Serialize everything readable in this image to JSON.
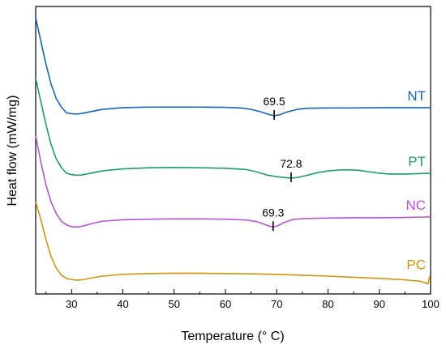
{
  "chart_data": {
    "type": "line",
    "xlabel": "Temperature (° C)",
    "ylabel": "Heat flow (mW/mg)",
    "xlim": [
      23,
      100
    ],
    "xticks": [
      30,
      40,
      50,
      60,
      70,
      80,
      90,
      100
    ],
    "xtick_labels": [
      "30",
      "40",
      "50",
      "60",
      "70",
      "80",
      "90",
      "100"
    ],
    "ylim": [
      0,
      100
    ],
    "yticks_shown": false,
    "grid": false,
    "series": [
      {
        "name": "NT",
        "color": "#1565C0",
        "points": [
          [
            23,
            96
          ],
          [
            24,
            88
          ],
          [
            25,
            80
          ],
          [
            26,
            73
          ],
          [
            27,
            68
          ],
          [
            28,
            65
          ],
          [
            29,
            63
          ],
          [
            30,
            62.7
          ],
          [
            31,
            62.6
          ],
          [
            32,
            62.8
          ],
          [
            34,
            63.5
          ],
          [
            36,
            64.2
          ],
          [
            40,
            64.8
          ],
          [
            45,
            65.0
          ],
          [
            50,
            65.0
          ],
          [
            55,
            65.0
          ],
          [
            60,
            64.9
          ],
          [
            63,
            64.7
          ],
          [
            65,
            64.2
          ],
          [
            67,
            63.3
          ],
          [
            68.5,
            62.4
          ],
          [
            69.5,
            62.0
          ],
          [
            70.5,
            62.3
          ],
          [
            72,
            63.3
          ],
          [
            74,
            64.2
          ],
          [
            76,
            64.6
          ],
          [
            80,
            64.7
          ],
          [
            85,
            64.7
          ],
          [
            90,
            64.8
          ],
          [
            95,
            64.8
          ],
          [
            100,
            64.8
          ]
        ],
        "peak_x": 69.5,
        "peak_label": "69.5"
      },
      {
        "name": "PT",
        "color": "#1C9E6B",
        "points": [
          [
            23,
            75
          ],
          [
            24,
            67
          ],
          [
            25,
            59
          ],
          [
            26,
            52
          ],
          [
            27,
            47
          ],
          [
            28,
            44
          ],
          [
            29,
            42
          ],
          [
            30,
            41.5
          ],
          [
            31,
            41.3
          ],
          [
            32,
            41.4
          ],
          [
            34,
            42.1
          ],
          [
            36,
            42.8
          ],
          [
            40,
            43.5
          ],
          [
            45,
            43.9
          ],
          [
            50,
            44.0
          ],
          [
            55,
            43.9
          ],
          [
            60,
            43.7
          ],
          [
            64,
            43.3
          ],
          [
            66,
            42.5
          ],
          [
            68,
            41.4
          ],
          [
            70,
            40.8
          ],
          [
            72,
            40.4
          ],
          [
            72.8,
            40.3
          ],
          [
            74,
            40.5
          ],
          [
            76,
            41.3
          ],
          [
            78,
            42.2
          ],
          [
            80,
            42.8
          ],
          [
            82,
            43.1
          ],
          [
            84,
            43.2
          ],
          [
            86,
            43.0
          ],
          [
            88,
            42.5
          ],
          [
            90,
            42.0
          ],
          [
            92,
            41.7
          ],
          [
            95,
            41.7
          ],
          [
            97,
            41.8
          ],
          [
            100,
            42.0
          ]
        ],
        "peak_x": 72.8,
        "peak_label": "72.8"
      },
      {
        "name": "NC",
        "color": "#B455D9",
        "points": [
          [
            23,
            55
          ],
          [
            24,
            46
          ],
          [
            25,
            38
          ],
          [
            26,
            32
          ],
          [
            27,
            28
          ],
          [
            28,
            25.3
          ],
          [
            29,
            24
          ],
          [
            30,
            23.4
          ],
          [
            31,
            23.3
          ],
          [
            32,
            23.5
          ],
          [
            34,
            24.5
          ],
          [
            36,
            25.3
          ],
          [
            40,
            25.8
          ],
          [
            45,
            26.0
          ],
          [
            50,
            26.1
          ],
          [
            55,
            26.1
          ],
          [
            60,
            26.0
          ],
          [
            64,
            25.7
          ],
          [
            66,
            25.2
          ],
          [
            67.5,
            24.3
          ],
          [
            68.5,
            23.6
          ],
          [
            69.3,
            23.3
          ],
          [
            70.2,
            23.7
          ],
          [
            71.5,
            24.9
          ],
          [
            73,
            25.8
          ],
          [
            75,
            26.2
          ],
          [
            80,
            26.4
          ],
          [
            85,
            26.5
          ],
          [
            90,
            26.5
          ],
          [
            95,
            26.6
          ],
          [
            100,
            26.8
          ]
        ],
        "peak_x": 69.3,
        "peak_label": "69.3"
      },
      {
        "name": "PC",
        "color": "#D4930E",
        "points": [
          [
            23,
            32
          ],
          [
            24,
            26
          ],
          [
            25,
            19
          ],
          [
            26,
            13
          ],
          [
            27,
            9
          ],
          [
            28,
            6.6
          ],
          [
            29,
            5.4
          ],
          [
            30,
            5.0
          ],
          [
            31,
            4.8
          ],
          [
            32,
            4.9
          ],
          [
            34,
            5.6
          ],
          [
            36,
            6.2
          ],
          [
            40,
            6.8
          ],
          [
            45,
            7.1
          ],
          [
            50,
            7.2
          ],
          [
            55,
            7.2
          ],
          [
            60,
            7.1
          ],
          [
            65,
            7.0
          ],
          [
            70,
            6.8
          ],
          [
            75,
            6.5
          ],
          [
            80,
            6.2
          ],
          [
            85,
            5.8
          ],
          [
            90,
            5.4
          ],
          [
            95,
            4.9
          ],
          [
            98,
            4.4
          ],
          [
            99.5,
            3.5
          ],
          [
            99.8,
            6
          ]
        ]
      }
    ]
  }
}
